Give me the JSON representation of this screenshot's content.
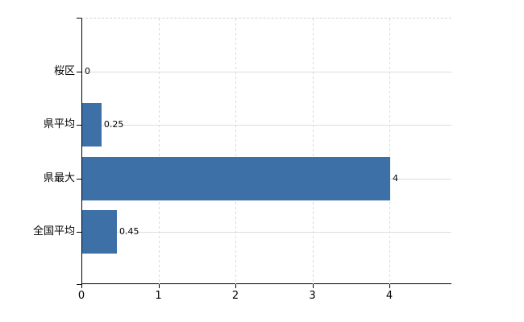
{
  "chart_data": {
    "type": "bar",
    "orientation": "horizontal",
    "title": "",
    "xlabel": "",
    "ylabel": "",
    "categories": [
      "桜区",
      "県平均",
      "県最大",
      "全国平均"
    ],
    "values": [
      0,
      0.25,
      4,
      0.45
    ],
    "value_labels": [
      "0",
      "0.25",
      "4",
      "0.45"
    ],
    "x_tick_labels": [
      "0",
      "1",
      "2",
      "3",
      "4"
    ],
    "x_tick_values": [
      0,
      1,
      2,
      3,
      4
    ],
    "xlim": [
      0,
      4.8
    ],
    "grid": true,
    "legend": false,
    "colors": {
      "bar": "#3e70a8",
      "axis": "#000000",
      "h_gridline": "#d8e0d6",
      "v_gridline": "#d8d8d8",
      "top_border": "#d4d4d4",
      "label": "#000000",
      "background": "#ffffff"
    }
  }
}
